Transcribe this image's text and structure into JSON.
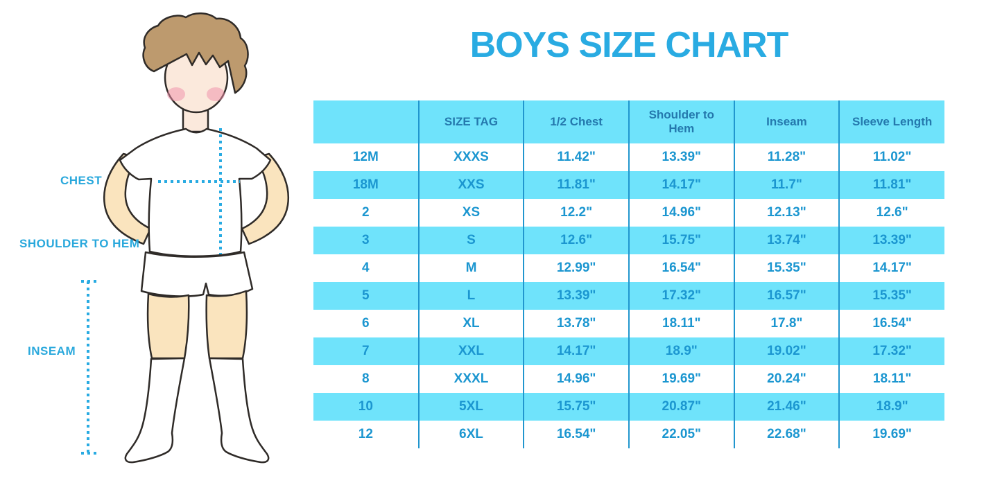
{
  "title": "BOYS SIZE CHART",
  "colors": {
    "title_blue": "#29ABE2",
    "header_text_blue": "#2478AD",
    "cell_text_blue": "#1B96D0",
    "stripe_cyan": "#6FE3FB",
    "divider_blue": "#2196CE",
    "label_blue": "#29A8DC",
    "dotted_line_blue": "#29ABE2",
    "hair_brown": "#BD9A6E",
    "face_skin": "#FBE9DC",
    "limb_skin": "#FAE4BE",
    "cheek_pink": "#F08EA8",
    "outline_dark": "#2F2B28"
  },
  "diagram": {
    "labels": {
      "chest": "CHEST",
      "shoulder_to_hem": "SHOULDER TO HEM",
      "inseam": "INSEAM"
    }
  },
  "chart_data": {
    "type": "table",
    "title": "BOYS SIZE CHART",
    "columns": [
      "",
      "SIZE TAG",
      "1/2 Chest",
      "Shoulder to Hem",
      "Inseam",
      "Sleeve Length"
    ],
    "rows": [
      [
        "12M",
        "XXXS",
        "11.42\"",
        "13.39\"",
        "11.28\"",
        "11.02\""
      ],
      [
        "18M",
        "XXS",
        "11.81\"",
        "14.17\"",
        "11.7\"",
        "11.81\""
      ],
      [
        "2",
        "XS",
        "12.2\"",
        "14.96\"",
        "12.13\"",
        "12.6\""
      ],
      [
        "3",
        "S",
        "12.6\"",
        "15.75\"",
        "13.74\"",
        "13.39\""
      ],
      [
        "4",
        "M",
        "12.99\"",
        "16.54\"",
        "15.35\"",
        "14.17\""
      ],
      [
        "5",
        "L",
        "13.39\"",
        "17.32\"",
        "16.57\"",
        "15.35\""
      ],
      [
        "6",
        "XL",
        "13.78\"",
        "18.11\"",
        "17.8\"",
        "16.54\""
      ],
      [
        "7",
        "XXL",
        "14.17\"",
        "18.9\"",
        "19.02\"",
        "17.32\""
      ],
      [
        "8",
        "XXXL",
        "14.96\"",
        "19.69\"",
        "20.24\"",
        "18.11\""
      ],
      [
        "10",
        "5XL",
        "15.75\"",
        "20.87\"",
        "21.46\"",
        "18.9\""
      ],
      [
        "12",
        "6XL",
        "16.54\"",
        "22.05\"",
        "22.68\"",
        "19.69\""
      ]
    ]
  }
}
